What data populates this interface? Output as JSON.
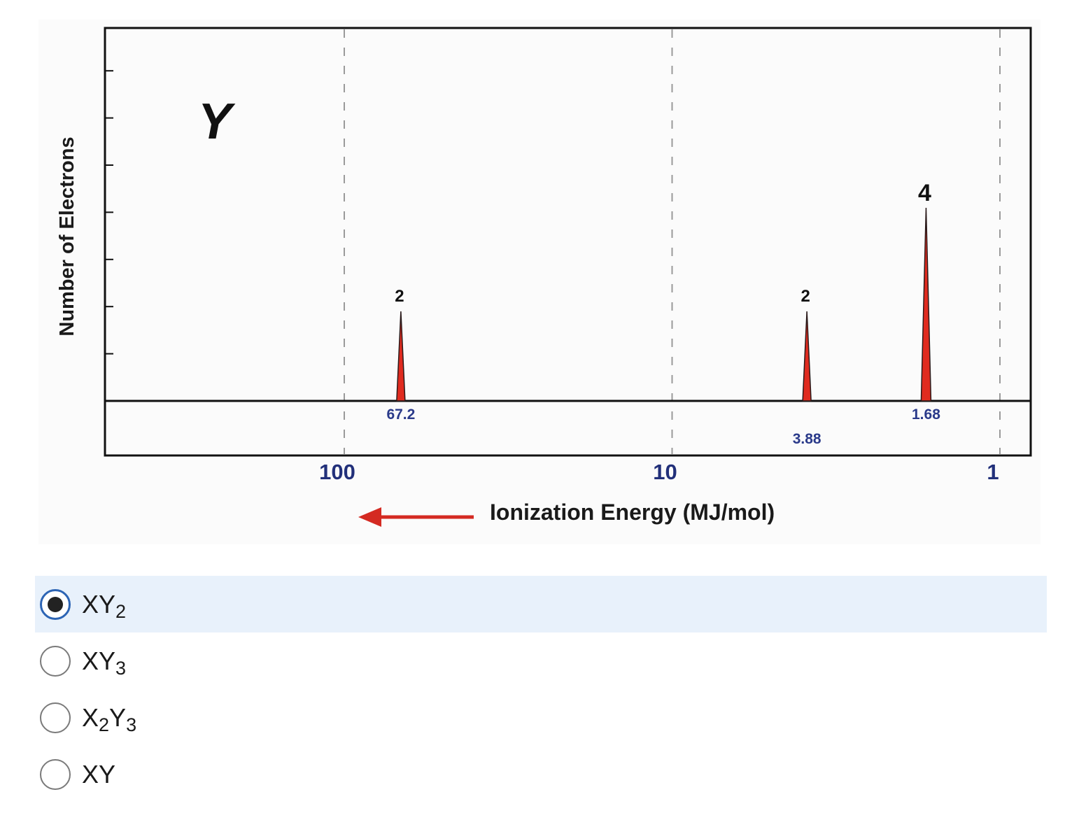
{
  "chart_data": {
    "type": "bar",
    "title": "Y",
    "xlabel": "Ionization Energy (MJ/mol)",
    "ylabel": "Number of Electrons",
    "x_scale": "log",
    "x_reversed": true,
    "x_ticks": [
      {
        "value": 100,
        "label": "100"
      },
      {
        "value": 10,
        "label": "10"
      },
      {
        "value": 1,
        "label": "1"
      }
    ],
    "peaks": [
      {
        "energy": 67.2,
        "energy_label": "67.2",
        "electrons": 2,
        "count_label": "2"
      },
      {
        "energy": 3.88,
        "energy_label": "3.88",
        "electrons": 2,
        "count_label": "2"
      },
      {
        "energy": 1.68,
        "energy_label": "1.68",
        "electrons": 4,
        "count_label": "4"
      }
    ],
    "peak_color": "#e02b1f",
    "arrow_color": "#d42a22",
    "grid": "dashed vertical lines at 100, 10, 1"
  },
  "question": {
    "options": [
      {
        "parts": [
          {
            "t": "XY"
          },
          {
            "s": "2"
          }
        ],
        "selected": true
      },
      {
        "parts": [
          {
            "t": "XY"
          },
          {
            "s": "3"
          }
        ],
        "selected": false
      },
      {
        "parts": [
          {
            "t": "X"
          },
          {
            "s": "2"
          },
          {
            "t": "Y"
          },
          {
            "s": "3"
          }
        ],
        "selected": false
      },
      {
        "parts": [
          {
            "t": "XY"
          }
        ],
        "selected": false
      }
    ],
    "selected_color": "#2c64b4",
    "selected_bg": "#e8f1fb"
  }
}
